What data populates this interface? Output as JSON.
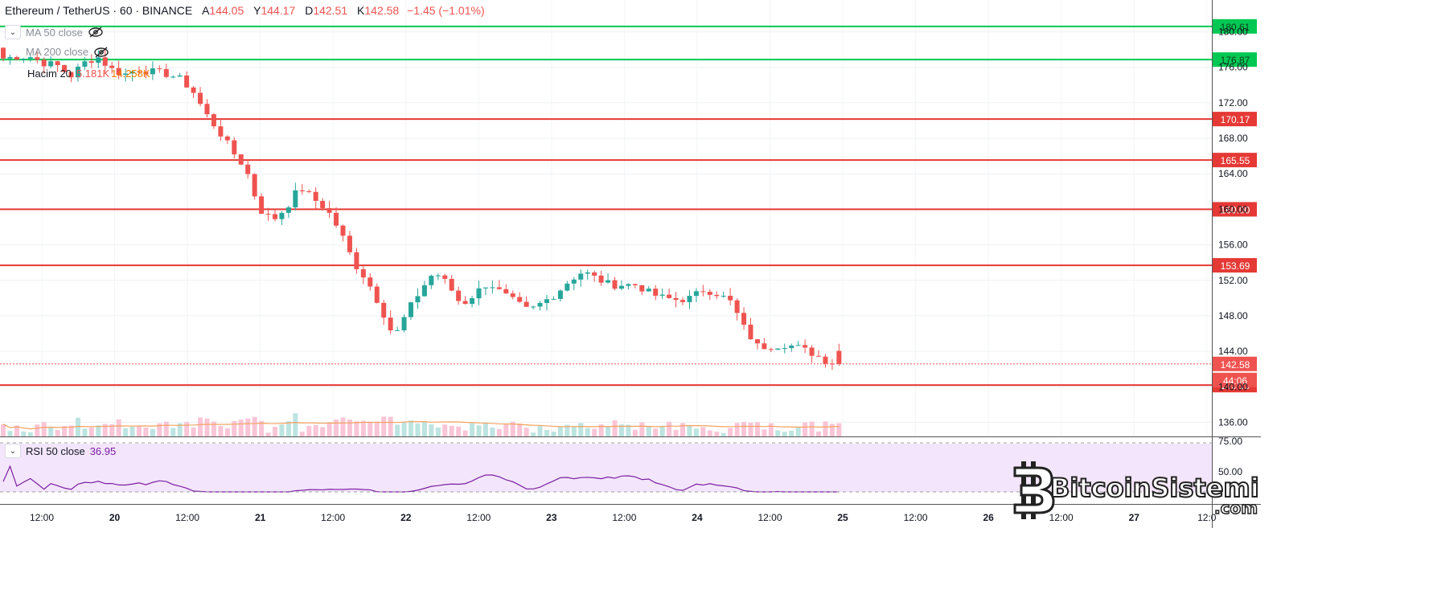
{
  "header": {
    "symbol": "Ethereum / TetherUS · 60 · BINANCE",
    "open_label": "A",
    "open": "144.05",
    "high_label": "Y",
    "high": "144.17",
    "low_label": "D",
    "low": "142.51",
    "close_label": "K",
    "close": "142.58",
    "change": "−1.45 (−1.01%)"
  },
  "indicators": [
    {
      "label": "MA 50 close",
      "icon": "eye-slash-icon"
    },
    {
      "label": "MA 200 close",
      "icon": "eye-slash-icon"
    },
    {
      "label": "Hacim 20",
      "value1": "5.181K",
      "value2": "14.258K"
    }
  ],
  "rsi": {
    "label": "RSI 50 close",
    "value": "36.95"
  },
  "logo": {
    "text": "BitcoinSistemi",
    "suffix": ".com"
  },
  "colors": {
    "up": "#26a69a",
    "down": "#ef5350",
    "resistance": "#e53935",
    "support_green": "#00c853",
    "rsi_line": "#7b1fa2",
    "rsi_band": "#f3e5fb"
  },
  "chart_data": {
    "type": "candlestick",
    "ylim": [
      134.5,
      181.5
    ],
    "y_ticks": [
      "136.00",
      "140.00",
      "144.00",
      "148.00",
      "152.00",
      "156.00",
      "160.00",
      "164.00",
      "168.00",
      "172.00",
      "176.00",
      "180.00"
    ],
    "x_ticks": [
      "12:00",
      "20",
      "12:00",
      "21",
      "12:00",
      "22",
      "12:00",
      "23",
      "12:00",
      "24",
      "12:00",
      "25",
      "12:00",
      "26",
      "12:00",
      "27",
      "12:0"
    ],
    "levels": [
      {
        "value": "180.61",
        "color": "green"
      },
      {
        "value": "176.87",
        "color": "green"
      },
      {
        "value": "170.17",
        "color": "red"
      },
      {
        "value": "165.55",
        "color": "red"
      },
      {
        "value": "160.00",
        "color": "red"
      },
      {
        "value": "153.69",
        "color": "red"
      },
      {
        "value": "140.19",
        "color": "red"
      }
    ],
    "last_price": "142.58",
    "countdown_label": "44:06",
    "rsi_levels": [
      "75.00",
      "50.00"
    ],
    "anchors": [
      [
        178.0,
        177.0
      ],
      [
        177.2,
        177.2
      ],
      [
        176.8,
        177.2
      ],
      [
        176.5,
        176.5
      ],
      [
        177.0,
        176.2
      ],
      [
        175.5,
        175.0
      ],
      [
        176.0,
        176.5
      ],
      [
        176.8,
        177.2
      ],
      [
        176.5,
        175.8
      ],
      [
        175.5,
        175.2
      ],
      [
        175.0,
        175.8
      ],
      [
        176.2,
        175.5
      ],
      [
        175.0,
        175.3
      ],
      [
        175.5,
        174.8
      ],
      [
        174.6,
        173.5
      ],
      [
        172.5,
        170.8
      ],
      [
        170.0,
        168.8
      ],
      [
        168.0,
        166.5
      ],
      [
        165.5,
        164.6
      ],
      [
        162.0,
        160.0
      ],
      [
        159.5,
        158.8
      ],
      [
        159.3,
        160.2
      ],
      [
        161.5,
        162.5
      ],
      [
        162.2,
        161.2
      ],
      [
        160.5,
        160.0
      ],
      [
        159.0,
        157.5
      ],
      [
        156.0,
        154.0
      ],
      [
        153.0,
        152.0
      ],
      [
        150.0,
        149.0
      ],
      [
        148.5,
        145.5
      ],
      [
        147.0,
        148.5
      ],
      [
        150.0,
        151.0
      ],
      [
        152.0,
        153.0
      ],
      [
        152.5,
        151.5
      ],
      [
        150.0,
        149.2
      ],
      [
        149.5,
        150.5
      ],
      [
        151.0,
        151.8
      ],
      [
        151.5,
        150.5
      ],
      [
        150.0,
        149.5
      ],
      [
        149.0,
        148.5
      ],
      [
        148.8,
        149.5
      ],
      [
        150.0,
        150.5
      ],
      [
        151.5,
        152.0
      ],
      [
        152.8,
        153.0
      ],
      [
        152.5,
        152.2
      ],
      [
        152.0,
        151.5
      ],
      [
        151.0,
        151.5
      ],
      [
        152.0,
        151.5
      ],
      [
        151.0,
        150.5
      ],
      [
        150.2,
        150.0
      ],
      [
        150.0,
        149.8
      ],
      [
        149.8,
        150.0
      ],
      [
        150.5,
        151.0
      ],
      [
        150.8,
        150.5
      ],
      [
        150.0,
        149.5
      ],
      [
        148.0,
        146.5
      ],
      [
        145.5,
        144.5
      ],
      [
        144.3,
        144.6
      ],
      [
        145.0,
        144.8
      ],
      [
        144.7,
        144.4
      ],
      [
        144.2,
        143.8
      ],
      [
        143.5,
        143.0
      ],
      [
        144.05,
        142.58
      ]
    ]
  }
}
